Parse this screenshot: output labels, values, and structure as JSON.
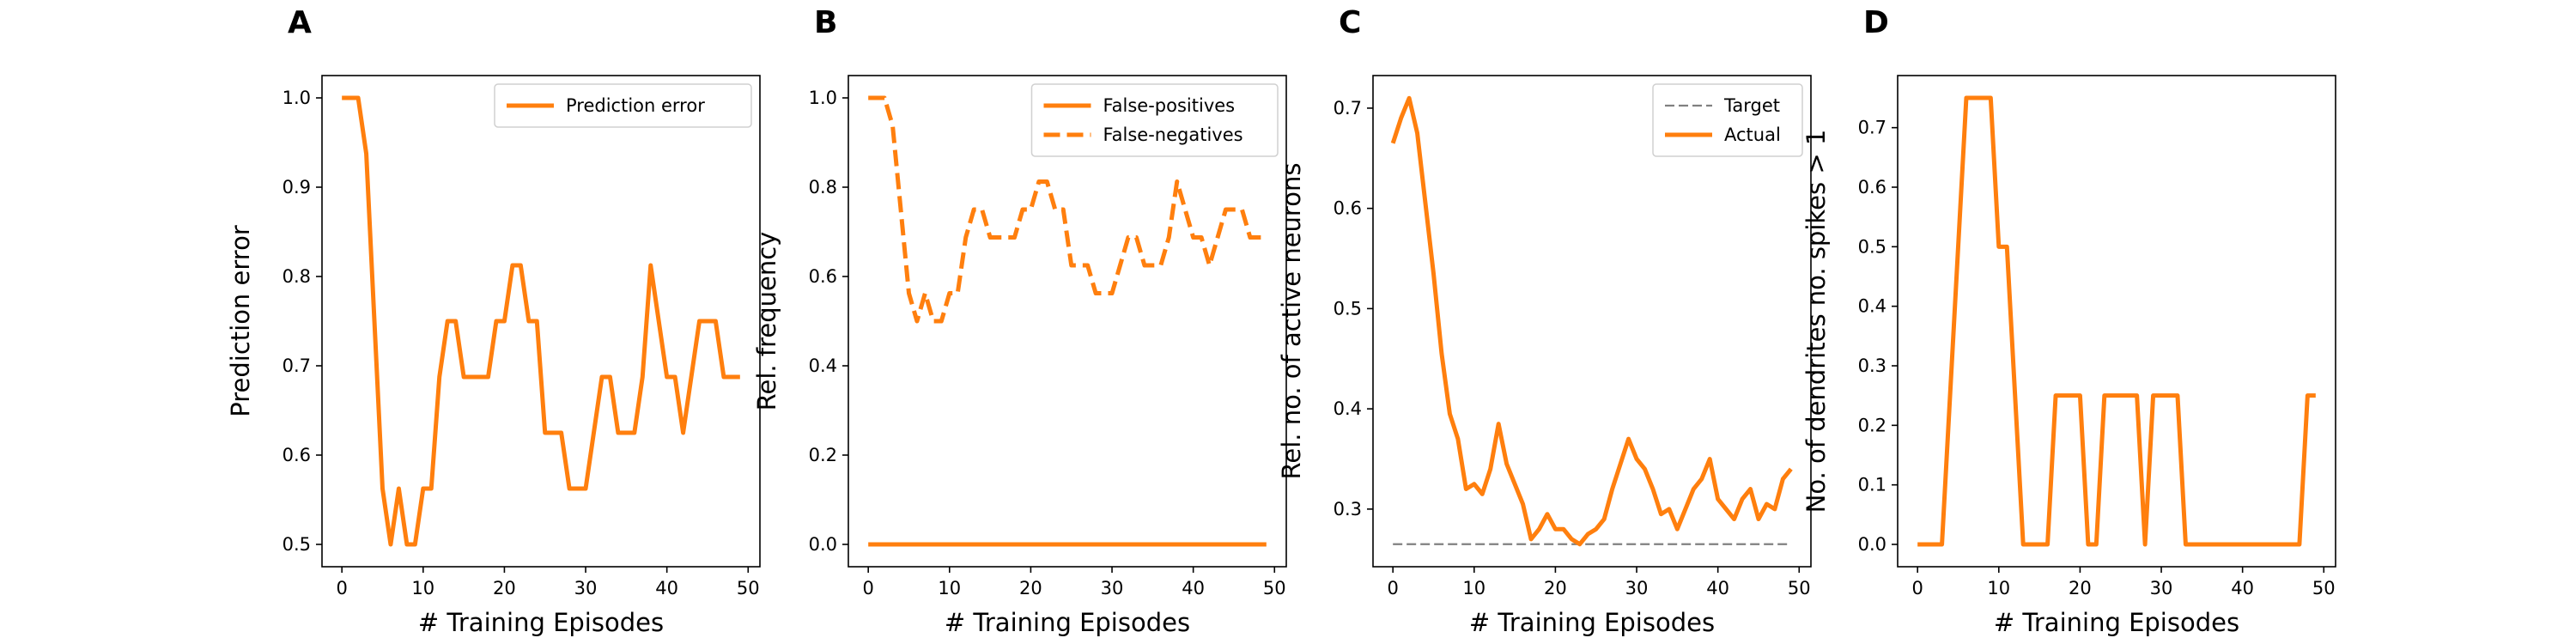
{
  "colors": {
    "series": "#ff7f0e",
    "target": "#808080",
    "axis": "#000000",
    "legend_border": "#d0d0d0"
  },
  "chart_data": [
    {
      "panel": "A",
      "type": "line",
      "xlabel": "# Training Episodes",
      "ylabel": "Prediction error",
      "xlim": [
        -2.45,
        51.45
      ],
      "ylim": [
        0.475,
        1.025
      ],
      "xticks": [
        0,
        10,
        20,
        30,
        40,
        50
      ],
      "yticks": [
        0.5,
        0.6,
        0.7,
        0.8,
        0.9,
        1.0
      ],
      "ytick_format": 1,
      "legend_position": "upper-right",
      "series": [
        {
          "name": "Prediction error",
          "style": "solid",
          "x": [
            0,
            1,
            2,
            3,
            4,
            5,
            6,
            7,
            8,
            9,
            10,
            11,
            12,
            13,
            14,
            15,
            16,
            17,
            18,
            19,
            20,
            21,
            22,
            23,
            24,
            25,
            26,
            27,
            28,
            29,
            30,
            31,
            32,
            33,
            34,
            35,
            36,
            37,
            38,
            39,
            40,
            41,
            42,
            43,
            44,
            45,
            46,
            47,
            48,
            49
          ],
          "y": [
            1.0,
            1.0,
            1.0,
            0.9375,
            0.75,
            0.5625,
            0.5,
            0.5625,
            0.5,
            0.5,
            0.5625,
            0.5625,
            0.6875,
            0.75,
            0.75,
            0.6875,
            0.6875,
            0.6875,
            0.6875,
            0.75,
            0.75,
            0.8125,
            0.8125,
            0.75,
            0.75,
            0.625,
            0.625,
            0.625,
            0.5625,
            0.5625,
            0.5625,
            0.625,
            0.6875,
            0.6875,
            0.625,
            0.625,
            0.625,
            0.6875,
            0.8125,
            0.75,
            0.6875,
            0.6875,
            0.625,
            0.6875,
            0.75,
            0.75,
            0.75,
            0.6875,
            0.6875,
            0.6875
          ]
        }
      ]
    },
    {
      "panel": "B",
      "type": "line",
      "xlabel": "# Training Episodes",
      "ylabel": "Rel. frequency",
      "xlim": [
        -2.45,
        51.45
      ],
      "ylim": [
        -0.05,
        1.05
      ],
      "xticks": [
        0,
        10,
        20,
        30,
        40,
        50
      ],
      "yticks": [
        0.0,
        0.2,
        0.4,
        0.6,
        0.8,
        1.0
      ],
      "ytick_format": 1,
      "legend_position": "upper-right",
      "series": [
        {
          "name": "False-positives",
          "style": "solid",
          "x": [
            0,
            1,
            2,
            3,
            4,
            5,
            6,
            7,
            8,
            9,
            10,
            11,
            12,
            13,
            14,
            15,
            16,
            17,
            18,
            19,
            20,
            21,
            22,
            23,
            24,
            25,
            26,
            27,
            28,
            29,
            30,
            31,
            32,
            33,
            34,
            35,
            36,
            37,
            38,
            39,
            40,
            41,
            42,
            43,
            44,
            45,
            46,
            47,
            48,
            49
          ],
          "y": [
            0,
            0,
            0,
            0,
            0,
            0,
            0,
            0,
            0,
            0,
            0,
            0,
            0,
            0,
            0,
            0,
            0,
            0,
            0,
            0,
            0,
            0,
            0,
            0,
            0,
            0,
            0,
            0,
            0,
            0,
            0,
            0,
            0,
            0,
            0,
            0,
            0,
            0,
            0,
            0,
            0,
            0,
            0,
            0,
            0,
            0,
            0,
            0,
            0,
            0
          ]
        },
        {
          "name": "False-negatives",
          "style": "dashed",
          "x": [
            0,
            1,
            2,
            3,
            4,
            5,
            6,
            7,
            8,
            9,
            10,
            11,
            12,
            13,
            14,
            15,
            16,
            17,
            18,
            19,
            20,
            21,
            22,
            23,
            24,
            25,
            26,
            27,
            28,
            29,
            30,
            31,
            32,
            33,
            34,
            35,
            36,
            37,
            38,
            39,
            40,
            41,
            42,
            43,
            44,
            45,
            46,
            47,
            48,
            49
          ],
          "y": [
            1.0,
            1.0,
            1.0,
            0.9375,
            0.75,
            0.5625,
            0.5,
            0.5625,
            0.5,
            0.5,
            0.5625,
            0.5625,
            0.6875,
            0.75,
            0.75,
            0.6875,
            0.6875,
            0.6875,
            0.6875,
            0.75,
            0.75,
            0.8125,
            0.8125,
            0.75,
            0.75,
            0.625,
            0.625,
            0.625,
            0.5625,
            0.5625,
            0.5625,
            0.625,
            0.6875,
            0.6875,
            0.625,
            0.625,
            0.625,
            0.6875,
            0.8125,
            0.75,
            0.6875,
            0.6875,
            0.625,
            0.6875,
            0.75,
            0.75,
            0.75,
            0.6875,
            0.6875,
            0.6875
          ]
        }
      ]
    },
    {
      "panel": "C",
      "type": "line",
      "xlabel": "# Training Episodes",
      "ylabel": "Rel. no. of active neurons",
      "xlim": [
        -2.45,
        51.45
      ],
      "ylim": [
        0.2425,
        0.7325
      ],
      "xticks": [
        0,
        10,
        20,
        30,
        40,
        50
      ],
      "yticks": [
        0.3,
        0.4,
        0.5,
        0.6,
        0.7
      ],
      "ytick_format": 1,
      "legend_position": "upper-right",
      "series": [
        {
          "name": "Target",
          "style": "dashed-thin",
          "x": [
            0,
            49
          ],
          "y": [
            0.265,
            0.265
          ]
        },
        {
          "name": "Actual",
          "style": "solid",
          "x": [
            0,
            1,
            2,
            3,
            4,
            5,
            6,
            7,
            8,
            9,
            10,
            11,
            12,
            13,
            14,
            15,
            16,
            17,
            18,
            19,
            20,
            21,
            22,
            23,
            24,
            25,
            26,
            27,
            28,
            29,
            30,
            31,
            32,
            33,
            34,
            35,
            36,
            37,
            38,
            39,
            40,
            41,
            42,
            43,
            44,
            45,
            46,
            47,
            48,
            49
          ],
          "y": [
            0.665,
            0.69,
            0.71,
            0.675,
            0.605,
            0.535,
            0.455,
            0.395,
            0.37,
            0.32,
            0.325,
            0.315,
            0.34,
            0.385,
            0.345,
            0.325,
            0.305,
            0.27,
            0.28,
            0.295,
            0.28,
            0.28,
            0.27,
            0.265,
            0.275,
            0.28,
            0.29,
            0.32,
            0.345,
            0.37,
            0.35,
            0.34,
            0.32,
            0.295,
            0.3,
            0.28,
            0.3,
            0.32,
            0.33,
            0.35,
            0.31,
            0.3,
            0.29,
            0.31,
            0.32,
            0.29,
            0.305,
            0.3,
            0.33,
            0.34
          ]
        }
      ]
    },
    {
      "panel": "D",
      "type": "line",
      "xlabel": "# Training Episodes",
      "ylabel": "No. of dendrites no. spikes > 1",
      "xlim": [
        -2.45,
        51.45
      ],
      "ylim": [
        -0.0375,
        0.7875
      ],
      "xticks": [
        0,
        10,
        20,
        30,
        40,
        50
      ],
      "yticks": [
        0.0,
        0.1,
        0.2,
        0.3,
        0.4,
        0.5,
        0.6,
        0.7
      ],
      "ytick_format": 1,
      "legend_position": "",
      "series": [
        {
          "name": "",
          "style": "solid",
          "x": [
            0,
            1,
            2,
            3,
            4,
            5,
            6,
            7,
            8,
            9,
            10,
            11,
            12,
            13,
            14,
            15,
            16,
            17,
            18,
            19,
            20,
            21,
            22,
            23,
            24,
            25,
            26,
            27,
            28,
            29,
            30,
            31,
            32,
            33,
            34,
            35,
            36,
            37,
            38,
            39,
            40,
            41,
            42,
            43,
            44,
            45,
            46,
            47,
            48,
            49
          ],
          "y": [
            0,
            0,
            0,
            0,
            0.25,
            0.5,
            0.75,
            0.75,
            0.75,
            0.75,
            0.5,
            0.5,
            0.25,
            0,
            0,
            0,
            0,
            0.25,
            0.25,
            0.25,
            0.25,
            0,
            0,
            0.25,
            0.25,
            0.25,
            0.25,
            0.25,
            0,
            0.25,
            0.25,
            0.25,
            0.25,
            0,
            0,
            0,
            0,
            0,
            0,
            0,
            0,
            0,
            0,
            0,
            0,
            0,
            0,
            0,
            0.25,
            0.25
          ]
        }
      ]
    }
  ]
}
